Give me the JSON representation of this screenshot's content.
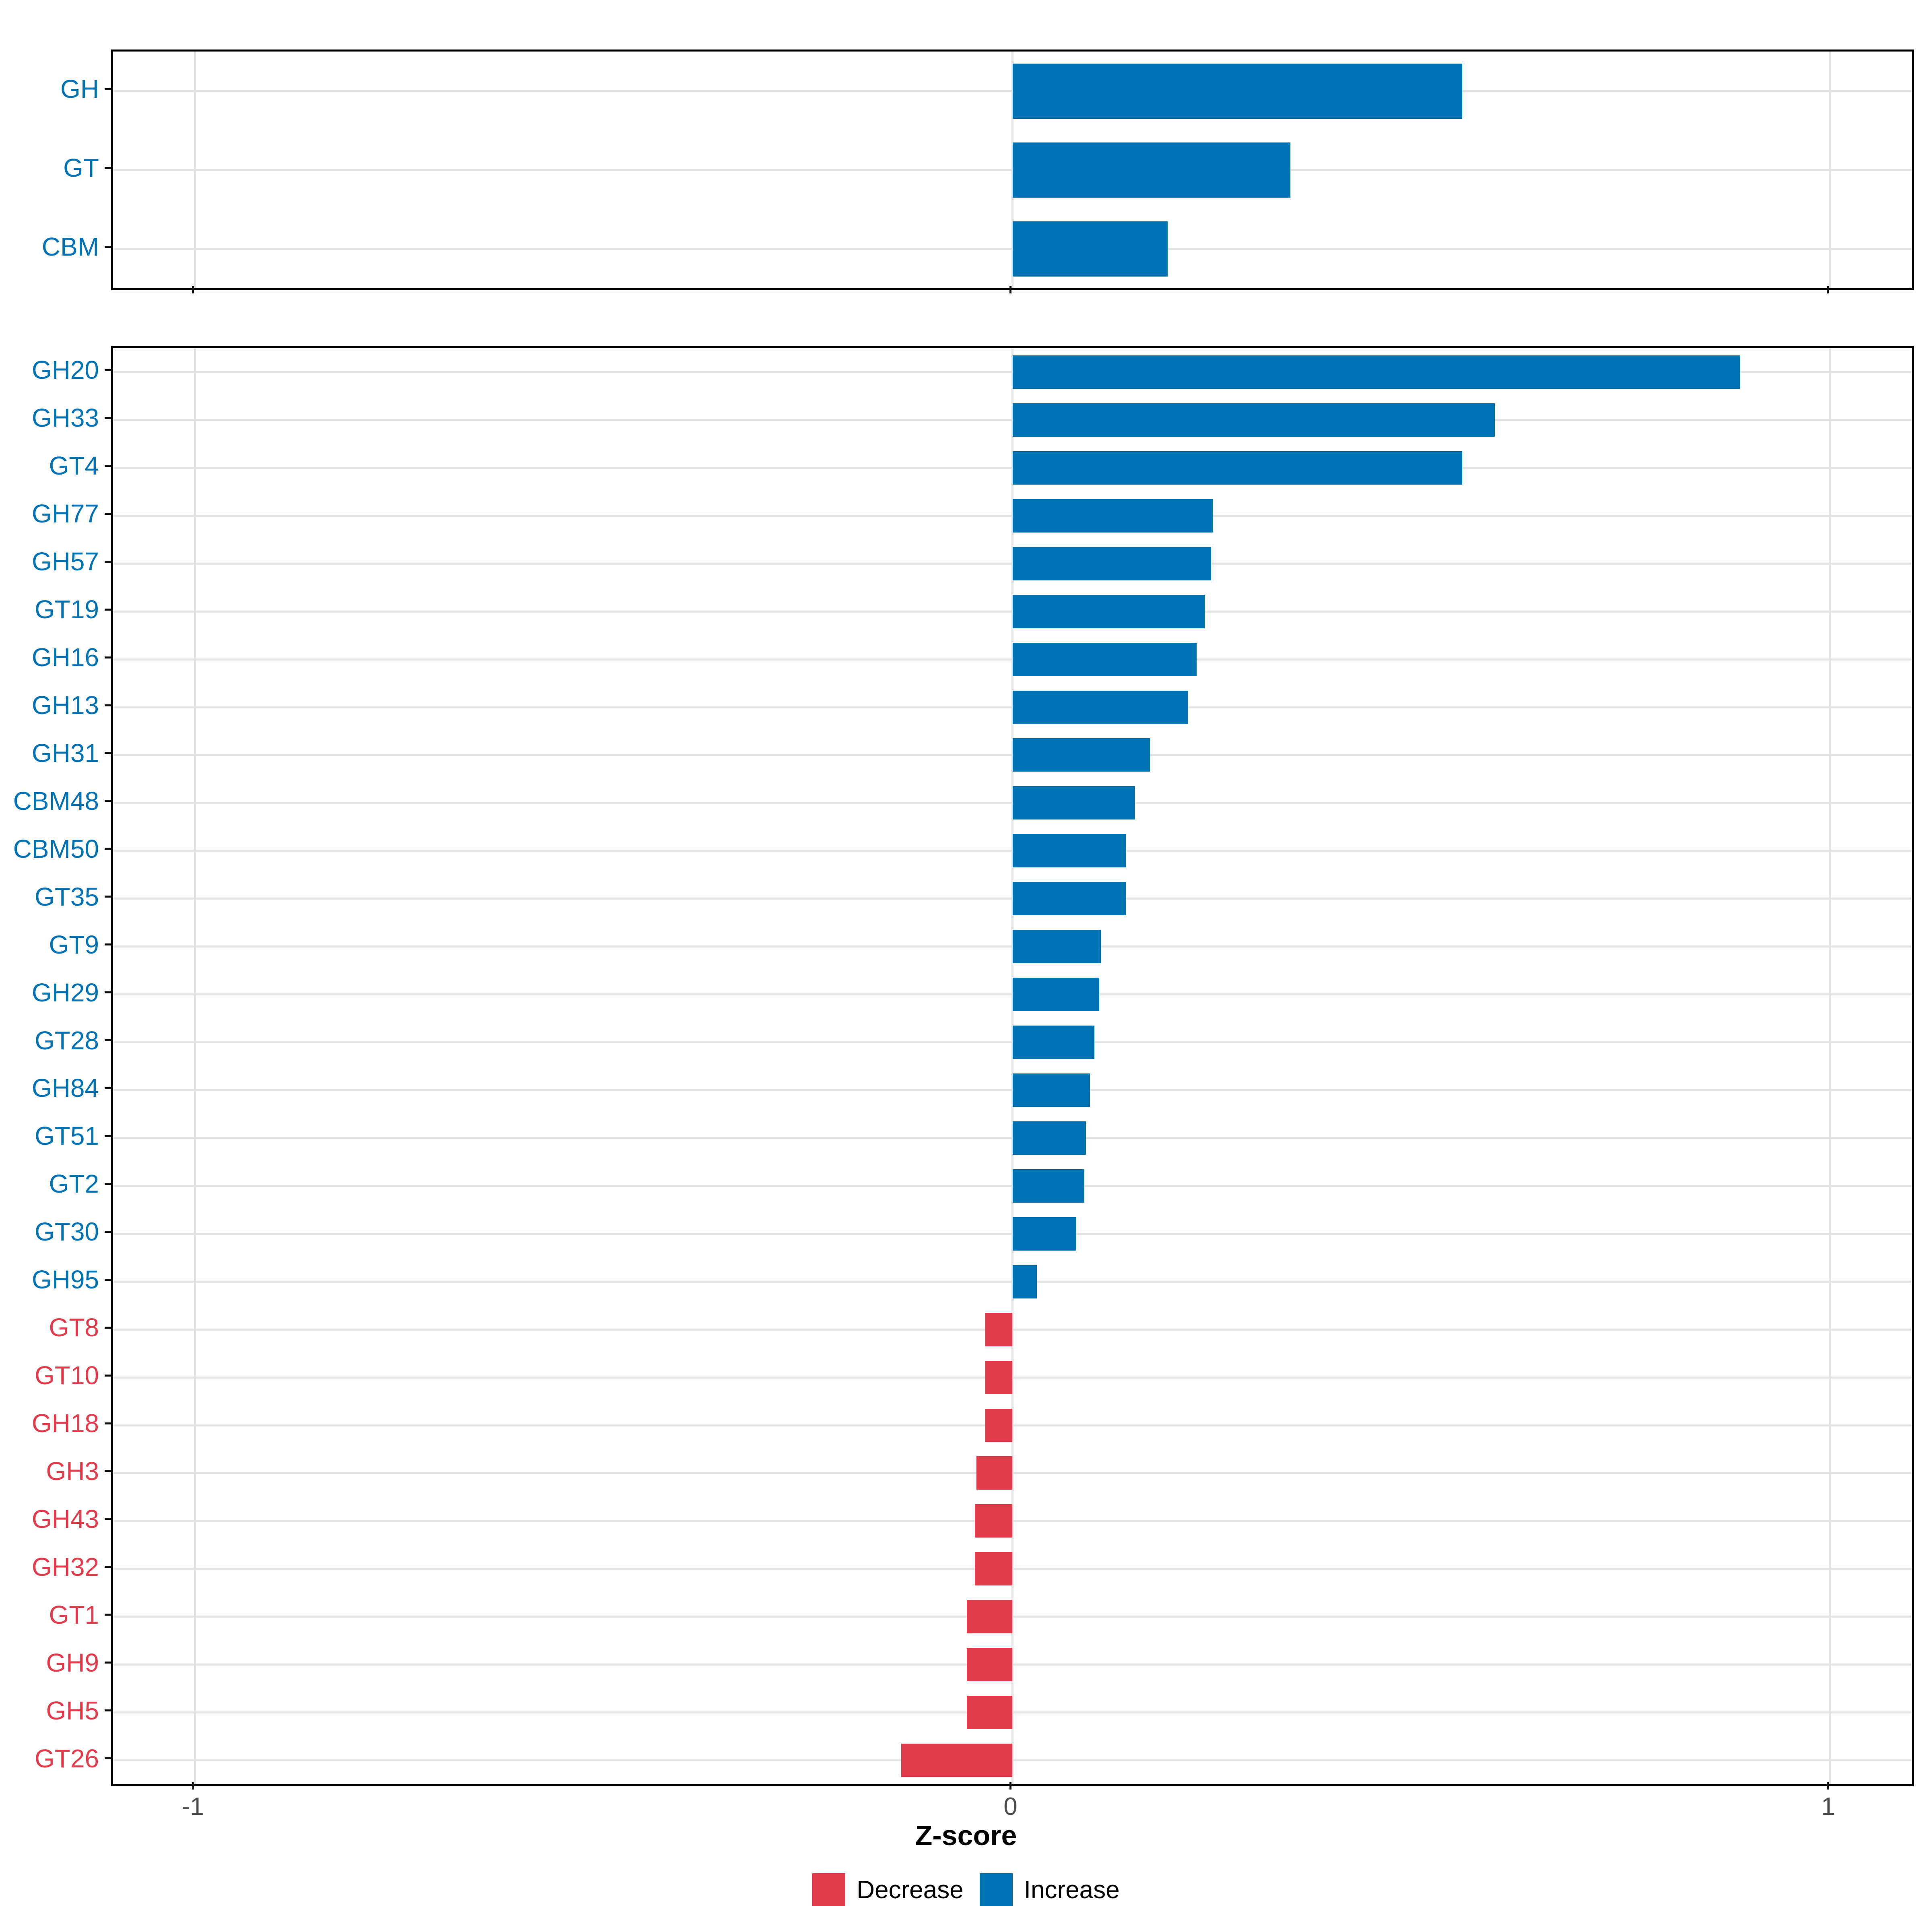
{
  "figure": {
    "xlabel": "Z-score",
    "x_tick_labels": [
      "-1",
      "0",
      "1"
    ],
    "colors": {
      "increase": "#0173B5",
      "decrease": "#E23B4C",
      "grid": "#E3E3E3",
      "tick": "#111111",
      "axis_text": "#4D4D4D",
      "border": "#000000"
    },
    "legend": [
      {
        "label": "Decrease",
        "group": "Decrease",
        "color": "#E23B4C"
      },
      {
        "label": "Increase",
        "group": "Increase",
        "color": "#0173B5"
      }
    ]
  },
  "chart_data": [
    {
      "type": "bar",
      "orientation": "horizontal",
      "panel_id": "panel-top",
      "title": "",
      "xlabel": "Z-score",
      "xlim": [
        -1.1,
        1.1
      ],
      "grid_x": [
        -1,
        0,
        1
      ],
      "show_x_tick_labels": false,
      "categories": [
        "GH",
        "GT",
        "CBM"
      ],
      "values": [
        0.55,
        0.34,
        0.19
      ],
      "groups": [
        "Increase",
        "Increase",
        "Increase"
      ]
    },
    {
      "type": "bar",
      "orientation": "horizontal",
      "panel_id": "panel-bottom",
      "title": "",
      "xlabel": "Z-score",
      "xlim": [
        -1.1,
        1.1
      ],
      "grid_x": [
        -1,
        0,
        1
      ],
      "show_x_tick_labels": true,
      "categories": [
        "GH20",
        "GH33",
        "GT4",
        "GH77",
        "GH57",
        "GT19",
        "GH16",
        "GH13",
        "GH31",
        "CBM48",
        "CBM50",
        "GT35",
        "GT9",
        "GH29",
        "GT28",
        "GH84",
        "GT51",
        "GT2",
        "GT30",
        "GH95",
        "GT8",
        "GT10",
        "GH18",
        "GH3",
        "GH43",
        "GH32",
        "GT1",
        "GH9",
        "GH5",
        "GT26"
      ],
      "values": [
        0.89,
        0.59,
        0.55,
        0.245,
        0.243,
        0.235,
        0.225,
        0.215,
        0.168,
        0.15,
        0.139,
        0.139,
        0.108,
        0.106,
        0.1,
        0.095,
        0.09,
        0.088,
        0.078,
        0.03,
        -0.033,
        -0.033,
        -0.033,
        -0.044,
        -0.046,
        -0.046,
        -0.056,
        -0.056,
        -0.056,
        -0.136
      ],
      "groups": [
        "Increase",
        "Increase",
        "Increase",
        "Increase",
        "Increase",
        "Increase",
        "Increase",
        "Increase",
        "Increase",
        "Increase",
        "Increase",
        "Increase",
        "Increase",
        "Increase",
        "Increase",
        "Increase",
        "Increase",
        "Increase",
        "Increase",
        "Increase",
        "Decrease",
        "Decrease",
        "Decrease",
        "Decrease",
        "Decrease",
        "Decrease",
        "Decrease",
        "Decrease",
        "Decrease",
        "Decrease"
      ]
    }
  ]
}
